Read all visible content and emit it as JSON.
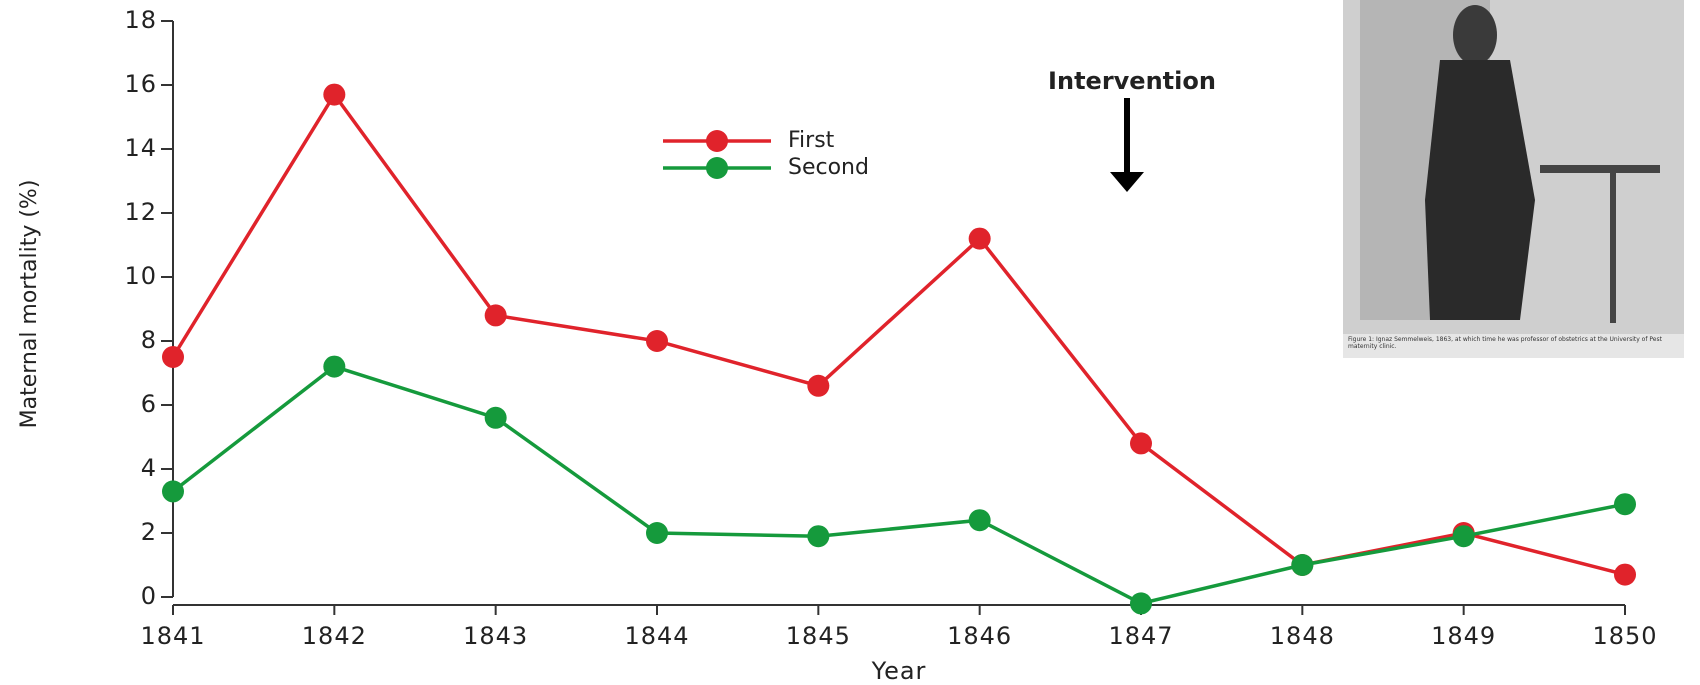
{
  "chart_data": {
    "type": "line",
    "x": [
      1841,
      1842,
      1843,
      1844,
      1845,
      1846,
      1847,
      1848,
      1849,
      1850
    ],
    "series": [
      {
        "name": "First",
        "color": "#e0232b",
        "values": [
          7.5,
          15.7,
          8.8,
          8.0,
          6.6,
          11.2,
          4.8,
          1.0,
          2.0,
          0.7
        ]
      },
      {
        "name": "Second",
        "color": "#159a3c",
        "values": [
          3.3,
          7.2,
          5.6,
          2.0,
          1.9,
          2.4,
          -0.2,
          1.0,
          1.9,
          2.9
        ]
      }
    ],
    "xlabel": "Year",
    "ylabel": "Maternal mortality (%)",
    "xlim": [
      1841,
      1850
    ],
    "xticks": [
      1841,
      1842,
      1843,
      1844,
      1845,
      1846,
      1847,
      1848,
      1849,
      1850
    ],
    "ylim": [
      0,
      18
    ],
    "yticks": [
      0,
      2,
      4,
      6,
      8,
      10,
      12,
      14,
      16,
      18
    ],
    "grid": false,
    "legend": "upper center",
    "annotation": "Intervention",
    "photo_caption": "Figure 1: Ignaz Semmelweis, 1863, at which time he was professor of obstetrics at the University of Pest maternity clinic."
  }
}
